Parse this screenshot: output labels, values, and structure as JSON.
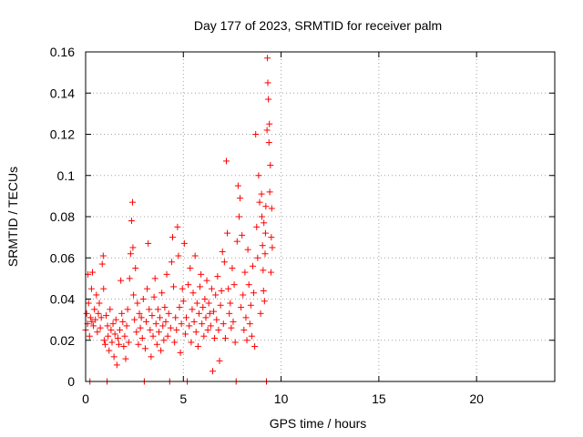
{
  "chart_data": {
    "type": "scatter",
    "title": "Day 177 of 2023, SRMTID for receiver palm",
    "xlabel": "GPS time / hours",
    "ylabel": "SRMTID / TECUs",
    "xlim": [
      0,
      24
    ],
    "ylim": [
      0,
      0.16
    ],
    "xticks": [
      0,
      5,
      10,
      15,
      20
    ],
    "xtick_labels": [
      "0",
      "5",
      "10",
      "15",
      "20"
    ],
    "yticks": [
      0,
      0.02,
      0.04,
      0.06,
      0.08,
      0.1,
      0.12,
      0.14,
      0.16
    ],
    "ytick_labels": [
      "0",
      "0.02",
      "0.04",
      "0.06",
      "0.08",
      "0.1",
      "0.12",
      "0.14",
      "0.16"
    ],
    "grid": true,
    "marker": "+",
    "series": [
      {
        "name": "SRMTID",
        "color": "#ff0000",
        "points": [
          [
            0.0,
            0.025
          ],
          [
            0.05,
            0.033
          ],
          [
            0.1,
            0.028
          ],
          [
            0.12,
            0.052
          ],
          [
            0.15,
            0.038
          ],
          [
            0.2,
            0.022
          ],
          [
            0.22,
            0.0
          ],
          [
            0.25,
            0.031
          ],
          [
            0.3,
            0.045
          ],
          [
            0.32,
            0.029
          ],
          [
            0.35,
            0.053
          ],
          [
            0.4,
            0.027
          ],
          [
            0.45,
            0.035
          ],
          [
            0.5,
            0.03
          ],
          [
            0.55,
            0.042
          ],
          [
            0.6,
            0.024
          ],
          [
            0.65,
            0.033
          ],
          [
            0.7,
            0.038
          ],
          [
            0.75,
            0.026
          ],
          [
            0.8,
            0.031
          ],
          [
            0.85,
            0.057
          ],
          [
            0.9,
            0.061
          ],
          [
            0.92,
            0.045
          ],
          [
            0.95,
            0.02
          ],
          [
            1.0,
            0.018
          ],
          [
            1.05,
            0.032
          ],
          [
            1.1,
            0.0
          ],
          [
            1.12,
            0.027
          ],
          [
            1.15,
            0.022
          ],
          [
            1.2,
            0.015
          ],
          [
            1.25,
            0.035
          ],
          [
            1.3,
            0.025
          ],
          [
            1.35,
            0.019
          ],
          [
            1.4,
            0.028
          ],
          [
            1.45,
            0.012
          ],
          [
            1.5,
            0.023
          ],
          [
            1.55,
            0.03
          ],
          [
            1.6,
            0.008
          ],
          [
            1.65,
            0.021
          ],
          [
            1.7,
            0.018
          ],
          [
            1.75,
            0.025
          ],
          [
            1.8,
            0.049
          ],
          [
            1.85,
            0.033
          ],
          [
            1.9,
            0.029
          ],
          [
            1.95,
            0.017
          ],
          [
            2.0,
            0.022
          ],
          [
            2.05,
            0.011
          ],
          [
            2.1,
            0.027
          ],
          [
            2.15,
            0.035
          ],
          [
            2.2,
            0.019
          ],
          [
            2.25,
            0.05
          ],
          [
            2.3,
            0.062
          ],
          [
            2.35,
            0.078
          ],
          [
            2.4,
            0.087
          ],
          [
            2.42,
            0.065
          ],
          [
            2.45,
            0.042
          ],
          [
            2.5,
            0.03
          ],
          [
            2.55,
            0.055
          ],
          [
            2.6,
            0.024
          ],
          [
            2.65,
            0.038
          ],
          [
            2.7,
            0.018
          ],
          [
            2.75,
            0.033
          ],
          [
            2.8,
            0.026
          ],
          [
            2.85,
            0.031
          ],
          [
            2.9,
            0.021
          ],
          [
            2.95,
            0.04
          ],
          [
            3.0,
            0.0
          ],
          [
            3.05,
            0.016
          ],
          [
            3.1,
            0.029
          ],
          [
            3.15,
            0.045
          ],
          [
            3.2,
            0.067
          ],
          [
            3.25,
            0.035
          ],
          [
            3.3,
            0.025
          ],
          [
            3.35,
            0.012
          ],
          [
            3.4,
            0.032
          ],
          [
            3.45,
            0.022
          ],
          [
            3.5,
            0.041
          ],
          [
            3.55,
            0.05
          ],
          [
            3.6,
            0.028
          ],
          [
            3.65,
            0.018
          ],
          [
            3.7,
            0.035
          ],
          [
            3.75,
            0.024
          ],
          [
            3.8,
            0.031
          ],
          [
            3.85,
            0.015
          ],
          [
            3.9,
            0.043
          ],
          [
            3.95,
            0.027
          ],
          [
            4.0,
            0.02
          ],
          [
            4.05,
            0.036
          ],
          [
            4.1,
            0.029
          ],
          [
            4.15,
            0.052
          ],
          [
            4.2,
            0.022
          ],
          [
            4.25,
            0.033
          ],
          [
            4.3,
            0.0
          ],
          [
            4.35,
            0.026
          ],
          [
            4.4,
            0.058
          ],
          [
            4.45,
            0.07
          ],
          [
            4.5,
            0.046
          ],
          [
            4.55,
            0.019
          ],
          [
            4.6,
            0.031
          ],
          [
            4.65,
            0.025
          ],
          [
            4.7,
            0.075
          ],
          [
            4.75,
            0.061
          ],
          [
            4.8,
            0.036
          ],
          [
            4.85,
            0.014
          ],
          [
            4.9,
            0.028
          ],
          [
            4.95,
            0.045
          ],
          [
            5.0,
            0.039
          ],
          [
            5.05,
            0.067
          ],
          [
            5.1,
            0.023
          ],
          [
            5.15,
            0.031
          ],
          [
            5.2,
            0.0
          ],
          [
            5.25,
            0.047
          ],
          [
            5.3,
            0.027
          ],
          [
            5.35,
            0.055
          ],
          [
            5.4,
            0.019
          ],
          [
            5.45,
            0.035
          ],
          [
            5.5,
            0.043
          ],
          [
            5.55,
            0.029
          ],
          [
            5.6,
            0.061
          ],
          [
            5.65,
            0.024
          ],
          [
            5.7,
            0.038
          ],
          [
            5.75,
            0.017
          ],
          [
            5.8,
            0.033
          ],
          [
            5.85,
            0.046
          ],
          [
            5.9,
            0.052
          ],
          [
            5.95,
            0.028
          ],
          [
            6.0,
            0.036
          ],
          [
            6.05,
            0.022
          ],
          [
            6.1,
            0.04
          ],
          [
            6.15,
            0.031
          ],
          [
            6.2,
            0.049
          ],
          [
            6.25,
            0.025
          ],
          [
            6.3,
            0.038
          ],
          [
            6.35,
            0.033
          ],
          [
            6.4,
            0.027
          ],
          [
            6.45,
            0.045
          ],
          [
            6.5,
            0.005
          ],
          [
            6.55,
            0.034
          ],
          [
            6.6,
            0.021
          ],
          [
            6.65,
            0.042
          ],
          [
            6.7,
            0.03
          ],
          [
            6.75,
            0.051
          ],
          [
            6.8,
            0.025
          ],
          [
            6.85,
            0.01
          ],
          [
            6.9,
            0.037
          ],
          [
            6.95,
            0.044
          ],
          [
            7.0,
            0.063
          ],
          [
            7.05,
            0.028
          ],
          [
            7.1,
            0.058
          ],
          [
            7.15,
            0.021
          ],
          [
            7.2,
            0.107
          ],
          [
            7.25,
            0.072
          ],
          [
            7.3,
            0.045
          ],
          [
            7.35,
            0.033
          ],
          [
            7.4,
            0.038
          ],
          [
            7.45,
            0.026
          ],
          [
            7.5,
            0.055
          ],
          [
            7.55,
            0.029
          ],
          [
            7.6,
            0.047
          ],
          [
            7.65,
            0.019
          ],
          [
            7.7,
            0.0
          ],
          [
            7.75,
            0.068
          ],
          [
            7.8,
            0.095
          ],
          [
            7.85,
            0.08
          ],
          [
            7.9,
            0.089
          ],
          [
            7.95,
            0.036
          ],
          [
            8.0,
            0.071
          ],
          [
            8.05,
            0.042
          ],
          [
            8.1,
            0.025
          ],
          [
            8.15,
            0.053
          ],
          [
            8.2,
            0.031
          ],
          [
            8.25,
            0.02
          ],
          [
            8.3,
            0.064
          ],
          [
            8.35,
            0.047
          ],
          [
            8.4,
            0.028
          ],
          [
            8.45,
            0.037
          ],
          [
            8.5,
            0.022
          ],
          [
            8.55,
            0.056
          ],
          [
            8.6,
            0.043
          ],
          [
            8.65,
            0.017
          ],
          [
            8.7,
            0.12
          ],
          [
            8.75,
            0.075
          ],
          [
            8.8,
            0.06
          ],
          [
            8.85,
            0.1
          ],
          [
            8.9,
            0.087
          ],
          [
            8.95,
            0.033
          ],
          [
            9.0,
            0.091
          ],
          [
            9.02,
            0.08
          ],
          [
            9.05,
            0.066
          ],
          [
            9.08,
            0.054
          ],
          [
            9.1,
            0.044
          ],
          [
            9.12,
            0.077
          ],
          [
            9.15,
            0.039
          ],
          [
            9.18,
            0.062
          ],
          [
            9.2,
            0.072
          ],
          [
            9.22,
            0.085
          ],
          [
            9.25,
            0.0
          ],
          [
            9.28,
            0.122
          ],
          [
            9.3,
            0.157
          ],
          [
            9.32,
            0.145
          ],
          [
            9.35,
            0.137
          ],
          [
            9.38,
            0.116
          ],
          [
            9.4,
            0.125
          ],
          [
            9.42,
            0.092
          ],
          [
            9.45,
            0.105
          ],
          [
            9.48,
            0.053
          ],
          [
            9.5,
            0.07
          ],
          [
            9.52,
            0.084
          ],
          [
            9.55,
            0.065
          ]
        ]
      }
    ]
  }
}
